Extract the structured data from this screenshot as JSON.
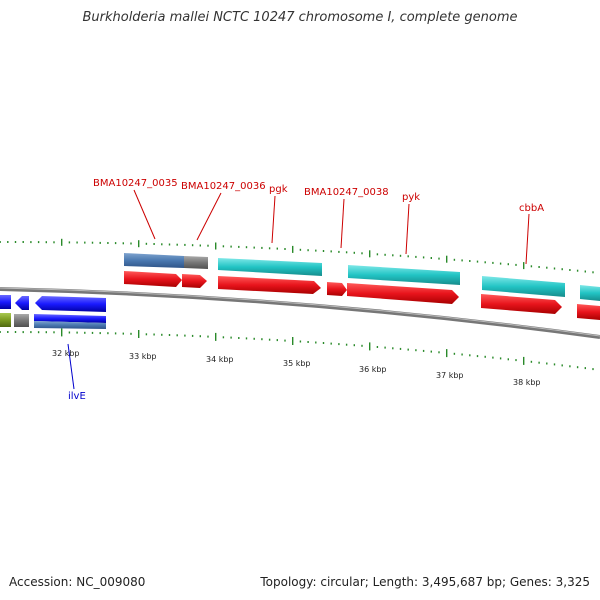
{
  "title": "Burkholderia mallei NCTC 10247 chromosome I, complete genome",
  "footer": {
    "accession": "Accession: NC_009080",
    "topology": "Topology: circular; Length: 3,495,687 bp; Genes: 3,325"
  },
  "colors": {
    "backbone": "#777777",
    "tick": "#2a8a2a",
    "forward_cds": "#e8141c",
    "reverse_blue": "#1a1aff",
    "cyan_feature": "#33cccc",
    "steelblue_feature": "#4a78b0",
    "grey_feature": "#777777",
    "olive_feature": "#7a9a20",
    "label_red": "#cc0000",
    "label_blue": "#0000cc"
  },
  "scale_labels": [
    "32 kbp",
    "33 kbp",
    "34 kbp",
    "35 kbp",
    "36 kbp",
    "37 kbp",
    "38 kbp"
  ],
  "gene_labels": [
    {
      "text": "BMA10247_0035",
      "color": "red"
    },
    {
      "text": "BMA10247_0036",
      "color": "red"
    },
    {
      "text": "pgk",
      "color": "red"
    },
    {
      "text": "BMA10247_0038",
      "color": "red"
    },
    {
      "text": "pyk",
      "color": "red"
    },
    {
      "text": "cbbA",
      "color": "red"
    },
    {
      "text": "ilvE",
      "color": "blue"
    }
  ]
}
